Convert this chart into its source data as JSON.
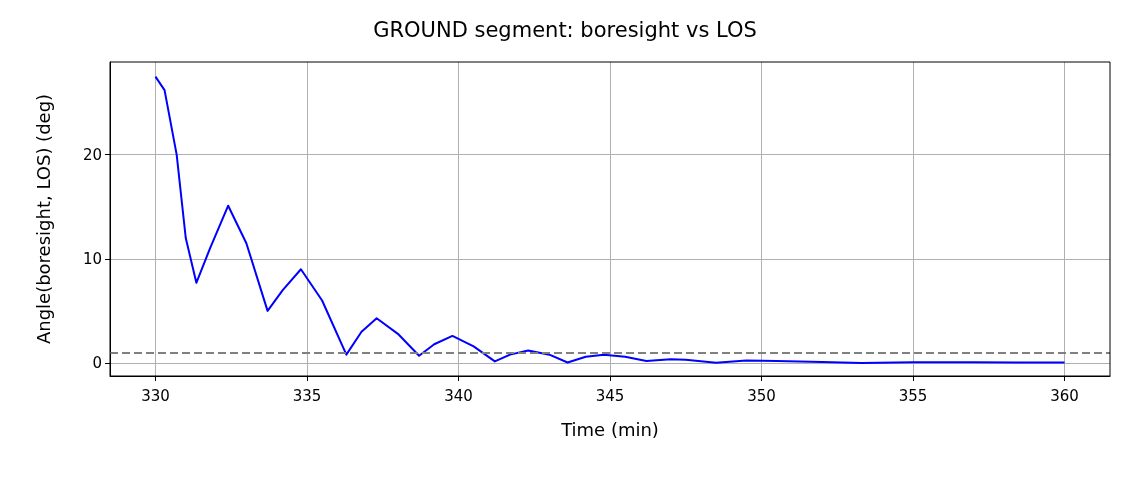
{
  "chart_data": {
    "type": "line",
    "title": "GROUND segment: boresight vs LOS",
    "xlabel": "Time (min)",
    "ylabel": "Angle(boresight, LOS) (deg)",
    "xlim": [
      328.5,
      361.5
    ],
    "xticks": [
      330,
      335,
      340,
      345,
      350,
      355,
      360
    ],
    "ylim": [
      -1.25,
      28.9
    ],
    "yticks": [
      0,
      10,
      20
    ],
    "grid": true,
    "marker": "none",
    "series": [
      {
        "color": "#0000ff",
        "x": [
          330,
          330.3,
          330.7,
          331.0,
          331.35,
          331.8,
          332.4,
          333.0,
          333.7,
          334.2,
          334.8,
          335.5,
          336.3,
          336.8,
          337.3,
          338.0,
          338.7,
          339.2,
          339.8,
          340.5,
          341.2,
          341.7,
          342.3,
          343.0,
          343.6,
          344.2,
          344.8,
          345.5,
          346.2,
          347.0,
          347.5,
          348.5,
          349.5,
          350.5,
          352,
          353.3,
          355,
          357,
          360
        ],
        "values": [
          27.5,
          26.2,
          20,
          12,
          7.7,
          11,
          15.1,
          11.5,
          5,
          7,
          9,
          6,
          0.8,
          3,
          4.3,
          2.8,
          0.7,
          1.8,
          2.6,
          1.6,
          0.15,
          0.8,
          1.2,
          0.8,
          0.05,
          0.6,
          0.8,
          0.6,
          0.2,
          0.35,
          0.3,
          0.02,
          0.25,
          0.2,
          0.1,
          0.0,
          0.08,
          0.06,
          0.05
        ]
      }
    ],
    "ref_lines": [
      {
        "axis": "y",
        "value": 1,
        "color": "#808080",
        "line_style": "dashed"
      }
    ]
  }
}
